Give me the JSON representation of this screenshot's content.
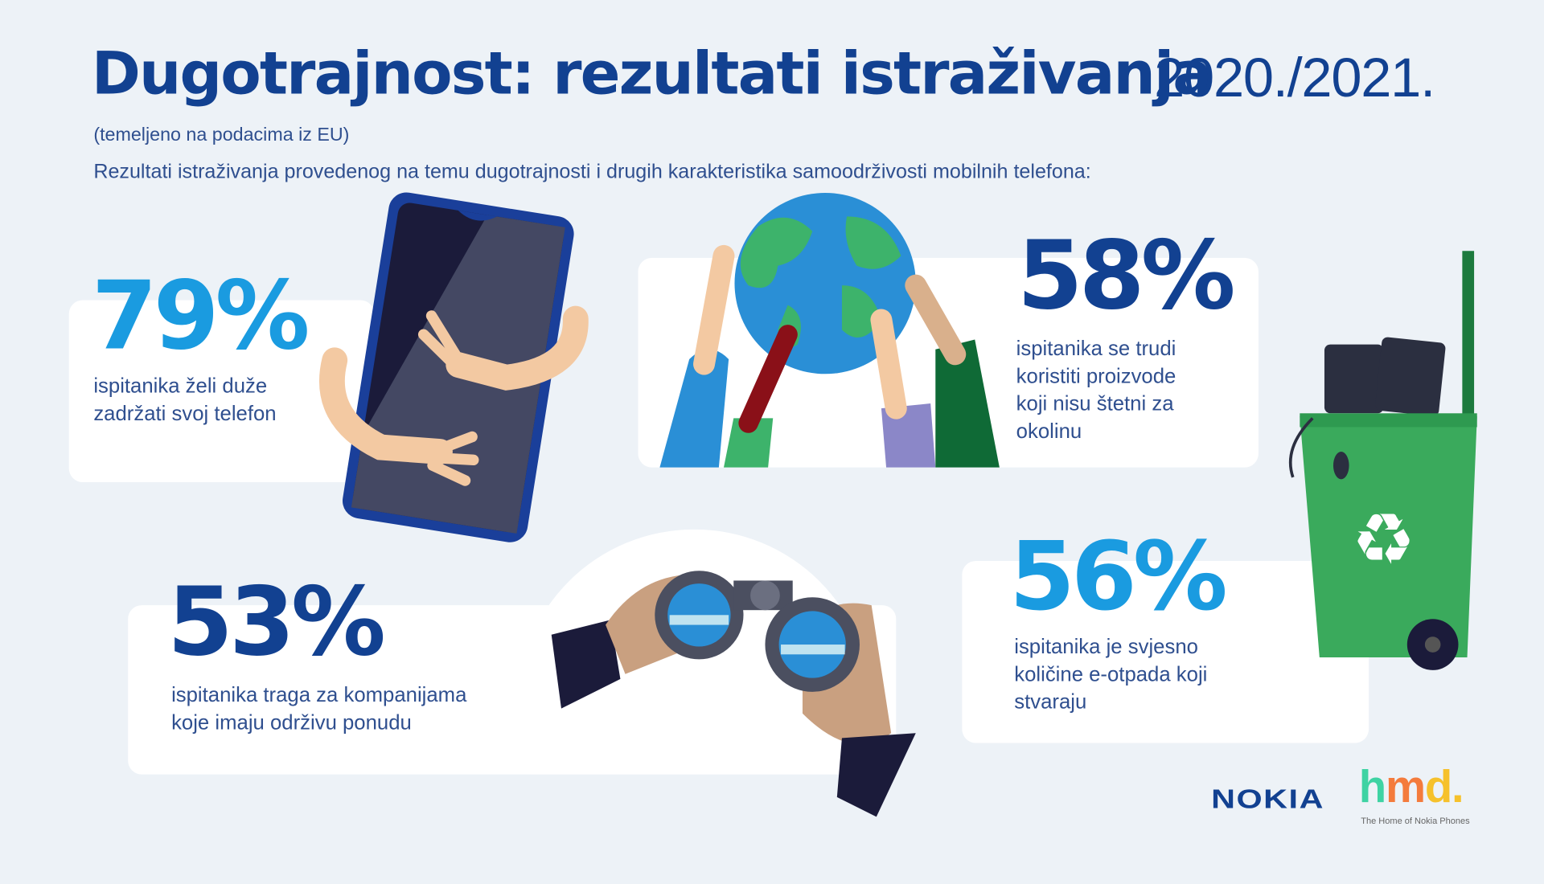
{
  "header": {
    "title": "Dugotrajnost: rezultati istraživanja",
    "year": "2020./2021.",
    "source_note": "(temeljeno na podacima iz EU)",
    "intro": "Rezultati istraživanja provedenog na temu dugotrajnosti i drugih karakteristika samoodrživosti mobilnih telefona:"
  },
  "stats": [
    {
      "value": "79%",
      "text": "ispitanika želi duže\nzadržati svoj telefon",
      "icon": "hugged-phone-icon"
    },
    {
      "value": "58%",
      "text": "ispitanika se trudi\nkoristiti proizvode\nkoji nisu štetni za\nokolinu",
      "icon": "hands-holding-globe-icon"
    },
    {
      "value": "53%",
      "text": "ispitanika traga za kompanijama\nkoje imaju održivu ponudu",
      "icon": "binoculars-icon"
    },
    {
      "value": "56%",
      "text": "ispitanika je svjesno\nkoličine e-otpada koji\nstvaraju",
      "icon": "recycle-bin-icon"
    }
  ],
  "logos": {
    "nokia": "NOKIA",
    "hmd": "hmd.",
    "hmd_tagline": "The Home of Nokia Phones"
  },
  "colors": {
    "dark_blue": "#124191",
    "light_blue": "#1a9be0",
    "background": "#edf2f7",
    "bin_green": "#3aaa5c"
  }
}
